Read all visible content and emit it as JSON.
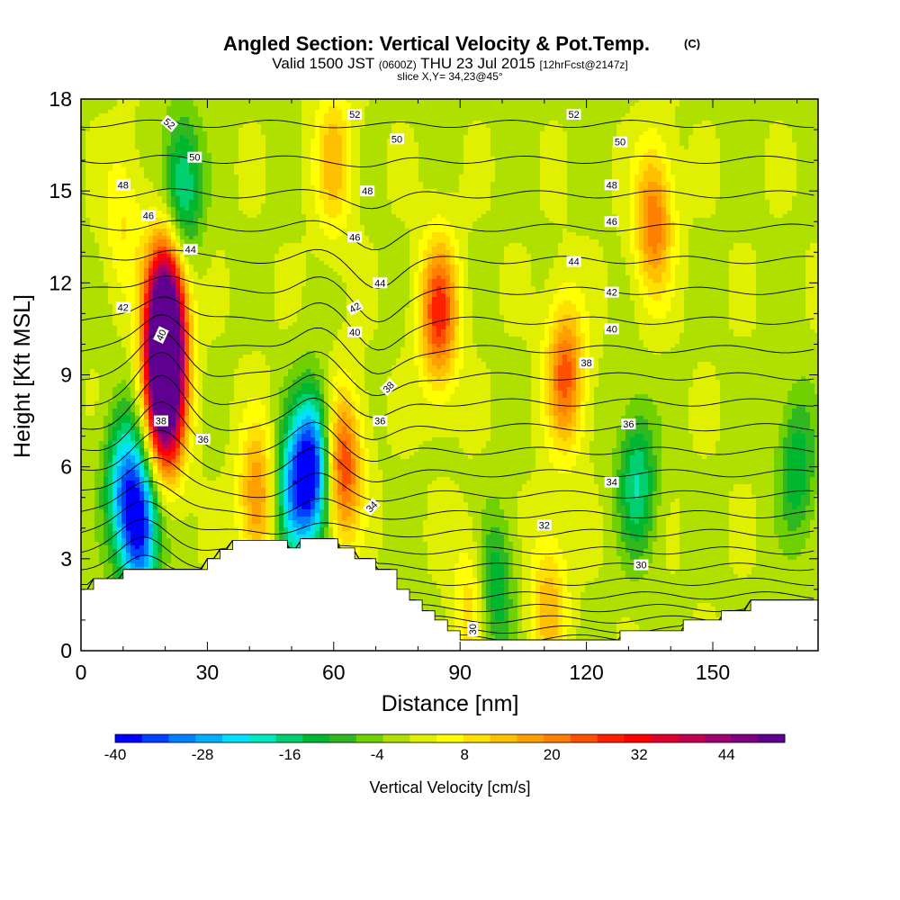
{
  "chart_data": {
    "type": "heatmap",
    "title": "Angled Section: Vertical Velocity & Pot.Temp.",
    "title_suffix": "(C)",
    "subtitle_parts": [
      "Valid 1500 JST ",
      "(0600Z)",
      " THU 23 Jul 2015 ",
      "[12hrFcst@2147z]"
    ],
    "slice_label": "slice X,Y= 34,23@45°",
    "xlabel": "Distance [nm]",
    "ylabel": "Height [Kft MSL]",
    "xlim": [
      0,
      175
    ],
    "ylim": [
      0,
      18
    ],
    "x_ticks": [
      "0",
      "30",
      "60",
      "90",
      "120",
      "150"
    ],
    "y_ticks": [
      "0",
      "3",
      "6",
      "9",
      "12",
      "15",
      "18"
    ],
    "colorbar": {
      "label": "Vertical Velocity [cm/s]",
      "range": [
        -40,
        52
      ],
      "tick_labels": [
        "-40",
        "-28",
        "-16",
        "-4",
        "8",
        "20",
        "32",
        "44"
      ],
      "colors": [
        "#0000ff",
        "#0040ff",
        "#0080ff",
        "#00b0ff",
        "#00e0ff",
        "#00e8c0",
        "#00d070",
        "#00b830",
        "#30b820",
        "#70d000",
        "#b0e000",
        "#e0f000",
        "#ffff00",
        "#ffe000",
        "#ffc000",
        "#ffa000",
        "#ff8000",
        "#ff5000",
        "#ff2000",
        "#ff0000",
        "#e00030",
        "#c00050",
        "#a00070",
        "#800080",
        "#600090"
      ]
    },
    "velocity_cells": [
      {
        "x": 20,
        "y": 10,
        "v": 50
      },
      {
        "x": 20,
        "y": 11.5,
        "v": 32
      },
      {
        "x": 20,
        "y": 8,
        "v": 44
      },
      {
        "x": 24,
        "y": 15,
        "v": -20
      },
      {
        "x": 14,
        "y": 4,
        "v": -36
      },
      {
        "x": 10,
        "y": 5.5,
        "v": -22
      },
      {
        "x": 55,
        "y": 6,
        "v": -38
      },
      {
        "x": 50,
        "y": 5,
        "v": -24
      },
      {
        "x": 62,
        "y": 6,
        "v": 28
      },
      {
        "x": 42,
        "y": 5,
        "v": 20
      },
      {
        "x": 85,
        "y": 11,
        "v": 28
      },
      {
        "x": 115,
        "y": 9,
        "v": 24
      },
      {
        "x": 136,
        "y": 14,
        "v": 22
      },
      {
        "x": 132,
        "y": 5.5,
        "v": -18
      },
      {
        "x": 98,
        "y": 2,
        "v": -16
      },
      {
        "x": 93,
        "y": 1.5,
        "v": 12
      },
      {
        "x": 111,
        "y": 1.5,
        "v": 14
      },
      {
        "x": 170,
        "y": 6,
        "v": -14
      },
      {
        "x": 60,
        "y": 16,
        "v": 14
      },
      {
        "x": 10,
        "y": 14,
        "v": 8
      }
    ],
    "terrain": [
      [
        0,
        2.0
      ],
      [
        3,
        2.0
      ],
      [
        3,
        2.35
      ],
      [
        10,
        2.35
      ],
      [
        10,
        2.65
      ],
      [
        30,
        2.65
      ],
      [
        30,
        3.0
      ],
      [
        33,
        3.0
      ],
      [
        33,
        3.3
      ],
      [
        36,
        3.3
      ],
      [
        36,
        3.6
      ],
      [
        49,
        3.6
      ],
      [
        49,
        3.35
      ],
      [
        52,
        3.35
      ],
      [
        52,
        3.65
      ],
      [
        61,
        3.65
      ],
      [
        61,
        3.35
      ],
      [
        65,
        3.35
      ],
      [
        65,
        3.0
      ],
      [
        70,
        3.0
      ],
      [
        70,
        2.65
      ],
      [
        75,
        2.65
      ],
      [
        75,
        2.0
      ],
      [
        78,
        2.0
      ],
      [
        78,
        1.65
      ],
      [
        81,
        1.65
      ],
      [
        81,
        1.3
      ],
      [
        84,
        1.3
      ],
      [
        84,
        1.0
      ],
      [
        87,
        1.0
      ],
      [
        87,
        0.65
      ],
      [
        90,
        0.65
      ],
      [
        90,
        0.35
      ],
      [
        128,
        0.35
      ],
      [
        128,
        0.65
      ],
      [
        143,
        0.65
      ],
      [
        143,
        1.0
      ],
      [
        152,
        1.0
      ],
      [
        152,
        1.3
      ],
      [
        159,
        1.3
      ],
      [
        159,
        1.65
      ],
      [
        175,
        1.65
      ]
    ],
    "isotherms": {
      "theta_base": 24.4,
      "base_gap": 0.25,
      "gap_change": 0.04,
      "step": 0.5,
      "count": 60,
      "perturbations": [
        {
          "x": 20,
          "y": 8,
          "dy": 1.4
        },
        {
          "x": 56,
          "y": 8,
          "dy": 1.0
        },
        {
          "x": 70,
          "y": 11,
          "dy": -1.0
        },
        {
          "x": 14,
          "y": 4,
          "dy": 0.8
        }
      ]
    },
    "contour_labels": [
      {
        "text": "52",
        "x": 21,
        "y": 17.2,
        "rot": 40
      },
      {
        "text": "50",
        "x": 27,
        "y": 16.1,
        "rot": 0
      },
      {
        "text": "48",
        "x": 10,
        "y": 15.2,
        "rot": 0
      },
      {
        "text": "46",
        "x": 16,
        "y": 14.2,
        "rot": 0
      },
      {
        "text": "44",
        "x": 26,
        "y": 13.1,
        "rot": 0
      },
      {
        "text": "42",
        "x": 10,
        "y": 11.2,
        "rot": 0
      },
      {
        "text": "40",
        "x": 19,
        "y": 10.3,
        "rot": -65
      },
      {
        "text": "38",
        "x": 19,
        "y": 7.5,
        "rot": 0
      },
      {
        "text": "36",
        "x": 29,
        "y": 6.9,
        "rot": 0
      },
      {
        "text": "52",
        "x": 65,
        "y": 17.5,
        "rot": 0
      },
      {
        "text": "50",
        "x": 75,
        "y": 16.7,
        "rot": 0
      },
      {
        "text": "48",
        "x": 68,
        "y": 15.0,
        "rot": 0
      },
      {
        "text": "46",
        "x": 65,
        "y": 13.5,
        "rot": 0
      },
      {
        "text": "44",
        "x": 71,
        "y": 12.0,
        "rot": 0
      },
      {
        "text": "42",
        "x": 65,
        "y": 11.2,
        "rot": -30
      },
      {
        "text": "40",
        "x": 65,
        "y": 10.4,
        "rot": 0
      },
      {
        "text": "38",
        "x": 73,
        "y": 8.6,
        "rot": -45
      },
      {
        "text": "36",
        "x": 71,
        "y": 7.5,
        "rot": 0
      },
      {
        "text": "34",
        "x": 69,
        "y": 4.7,
        "rot": -45
      },
      {
        "text": "52",
        "x": 117,
        "y": 17.5,
        "rot": 0
      },
      {
        "text": "50",
        "x": 128,
        "y": 16.6,
        "rot": 0
      },
      {
        "text": "48",
        "x": 126,
        "y": 15.2,
        "rot": 0
      },
      {
        "text": "46",
        "x": 126,
        "y": 14.0,
        "rot": 0
      },
      {
        "text": "44",
        "x": 117,
        "y": 12.7,
        "rot": 0
      },
      {
        "text": "42",
        "x": 126,
        "y": 11.7,
        "rot": 0
      },
      {
        "text": "40",
        "x": 126,
        "y": 10.5,
        "rot": 0
      },
      {
        "text": "38",
        "x": 120,
        "y": 9.4,
        "rot": 0
      },
      {
        "text": "36",
        "x": 130,
        "y": 7.4,
        "rot": 0
      },
      {
        "text": "34",
        "x": 126,
        "y": 5.5,
        "rot": 0
      },
      {
        "text": "32",
        "x": 110,
        "y": 4.1,
        "rot": 0
      },
      {
        "text": "30",
        "x": 133,
        "y": 2.8,
        "rot": 0
      },
      {
        "text": "30",
        "x": 93,
        "y": 0.7,
        "rot": -90
      }
    ]
  }
}
